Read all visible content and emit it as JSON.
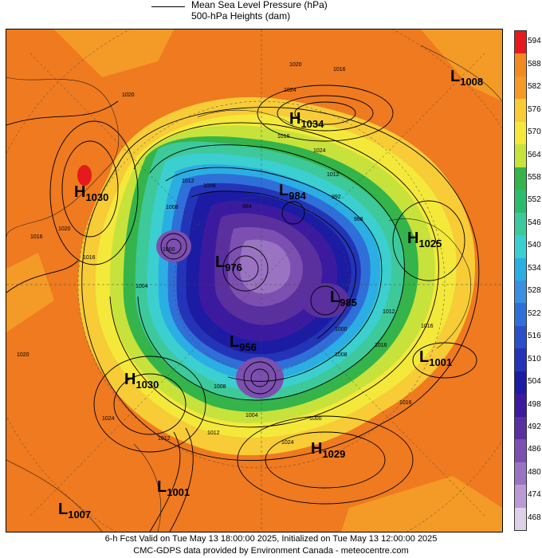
{
  "header": {
    "legend_line1": "Mean Sea Level Pressure (hPa)",
    "legend_line2": "500-hPa Heights (dam)"
  },
  "colorbar": {
    "levels": [
      "594",
      "588",
      "582",
      "576",
      "570",
      "564",
      "558",
      "552",
      "546",
      "540",
      "534",
      "528",
      "522",
      "516",
      "510",
      "504",
      "498",
      "492",
      "486",
      "480",
      "474",
      "468"
    ],
    "colors": [
      "#e41a1c",
      "#f28a22",
      "#f49a26",
      "#f7cc36",
      "#f4e93a",
      "#c8e23c",
      "#34b44a",
      "#2bbd6e",
      "#3ec99b",
      "#3bcfd0",
      "#2aaee3",
      "#3b8fe0",
      "#2f6fd8",
      "#2a4fc8",
      "#2434b8",
      "#1b1ca3",
      "#3b1aa0",
      "#5a2f9e",
      "#7c4fb0",
      "#9a74c2",
      "#b99ad4",
      "#ddd1ea"
    ]
  },
  "systems": [
    {
      "letter": "H",
      "value": "1034"
    },
    {
      "letter": "L",
      "value": "1008"
    },
    {
      "letter": "H",
      "value": "1030"
    },
    {
      "letter": "H",
      "value": "1025"
    },
    {
      "letter": "L",
      "value": "984"
    },
    {
      "letter": "L",
      "value": "976"
    },
    {
      "letter": "L",
      "value": "985"
    },
    {
      "letter": "L",
      "value": "956"
    },
    {
      "letter": "L",
      "value": "1001"
    },
    {
      "letter": "H",
      "value": "1030"
    },
    {
      "letter": "H",
      "value": "1029"
    },
    {
      "letter": "L",
      "value": "1001"
    },
    {
      "letter": "L",
      "value": "1007"
    }
  ],
  "isobar_labels": [
    "1020",
    "1016",
    "1024",
    "1020",
    "1016",
    "1024",
    "1012",
    "1008",
    "1012",
    "1016",
    "1020",
    "1008",
    "1004",
    "1000",
    "992",
    "984",
    "988",
    "1016",
    "1012",
    "1016",
    "1008",
    "1000",
    "1004",
    "1012",
    "1016",
    "1020",
    "1024",
    "1012",
    "1016",
    "1000",
    "1024",
    "1008"
  ],
  "footer": {
    "line1": "6-h Fcst Valid on Tue May 13 18:00:00 2025, Initialized on Tue May 13 12:00:00 2025",
    "line2": "CMC-GDPS data provided by Environment Canada - meteocentre.com"
  }
}
